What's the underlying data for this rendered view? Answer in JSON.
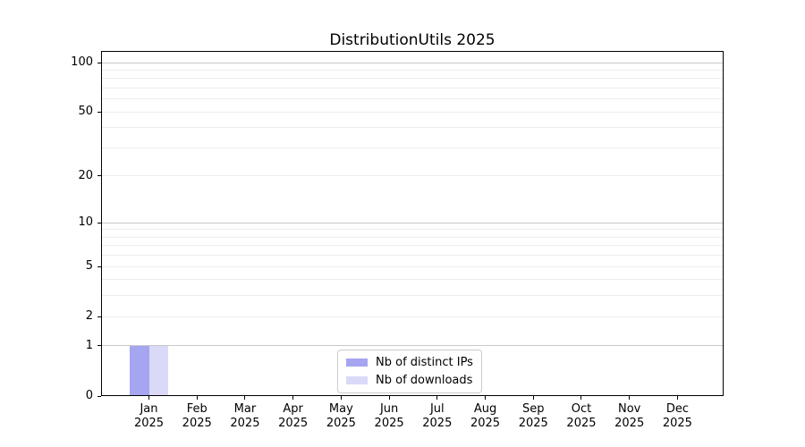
{
  "chart_data": {
    "type": "bar",
    "title": "DistributionUtils 2025",
    "categories": [
      "Jan 2025",
      "Feb 2025",
      "Mar 2025",
      "Apr 2025",
      "May 2025",
      "Jun 2025",
      "Jul 2025",
      "Aug 2025",
      "Sep 2025",
      "Oct 2025",
      "Nov 2025",
      "Dec 2025"
    ],
    "x_tick_labels": [
      [
        "Jan",
        "2025"
      ],
      [
        "Feb",
        "2025"
      ],
      [
        "Mar",
        "2025"
      ],
      [
        "Apr",
        "2025"
      ],
      [
        "May",
        "2025"
      ],
      [
        "Jun",
        "2025"
      ],
      [
        "Jul",
        "2025"
      ],
      [
        "Aug",
        "2025"
      ],
      [
        "Sep",
        "2025"
      ],
      [
        "Oct",
        "2025"
      ],
      [
        "Nov",
        "2025"
      ],
      [
        "Dec",
        "2025"
      ]
    ],
    "series": [
      {
        "name": "Nb of distinct IPs",
        "color": "#a5a5f0",
        "values": [
          1,
          0,
          0,
          0,
          0,
          0,
          0,
          0,
          0,
          0,
          0,
          0
        ]
      },
      {
        "name": "Nb of downloads",
        "color": "#dadaf8",
        "values": [
          1,
          0,
          0,
          0,
          0,
          0,
          0,
          0,
          0,
          0,
          0,
          0
        ]
      }
    ],
    "y_axis": {
      "scale": "log1p",
      "range": [
        0,
        100
      ],
      "ticks": [
        0,
        1,
        2,
        5,
        10,
        20,
        50,
        100
      ],
      "major_grid_values": [
        1,
        10,
        100
      ],
      "minor_grid_values": [
        2,
        3,
        4,
        5,
        6,
        7,
        8,
        9,
        20,
        30,
        40,
        50,
        60,
        70,
        80,
        90
      ]
    },
    "legend": {
      "position": "lower center",
      "entries": [
        "Nb of distinct IPs",
        "Nb of downloads"
      ]
    },
    "colors": {
      "background": "#ffffff",
      "text": "#000000",
      "spine": "#000000",
      "major_grid": "#c9c9c9",
      "minor_grid": "#ededed",
      "legend_border": "#cccccc"
    },
    "grid": "horizontal"
  }
}
